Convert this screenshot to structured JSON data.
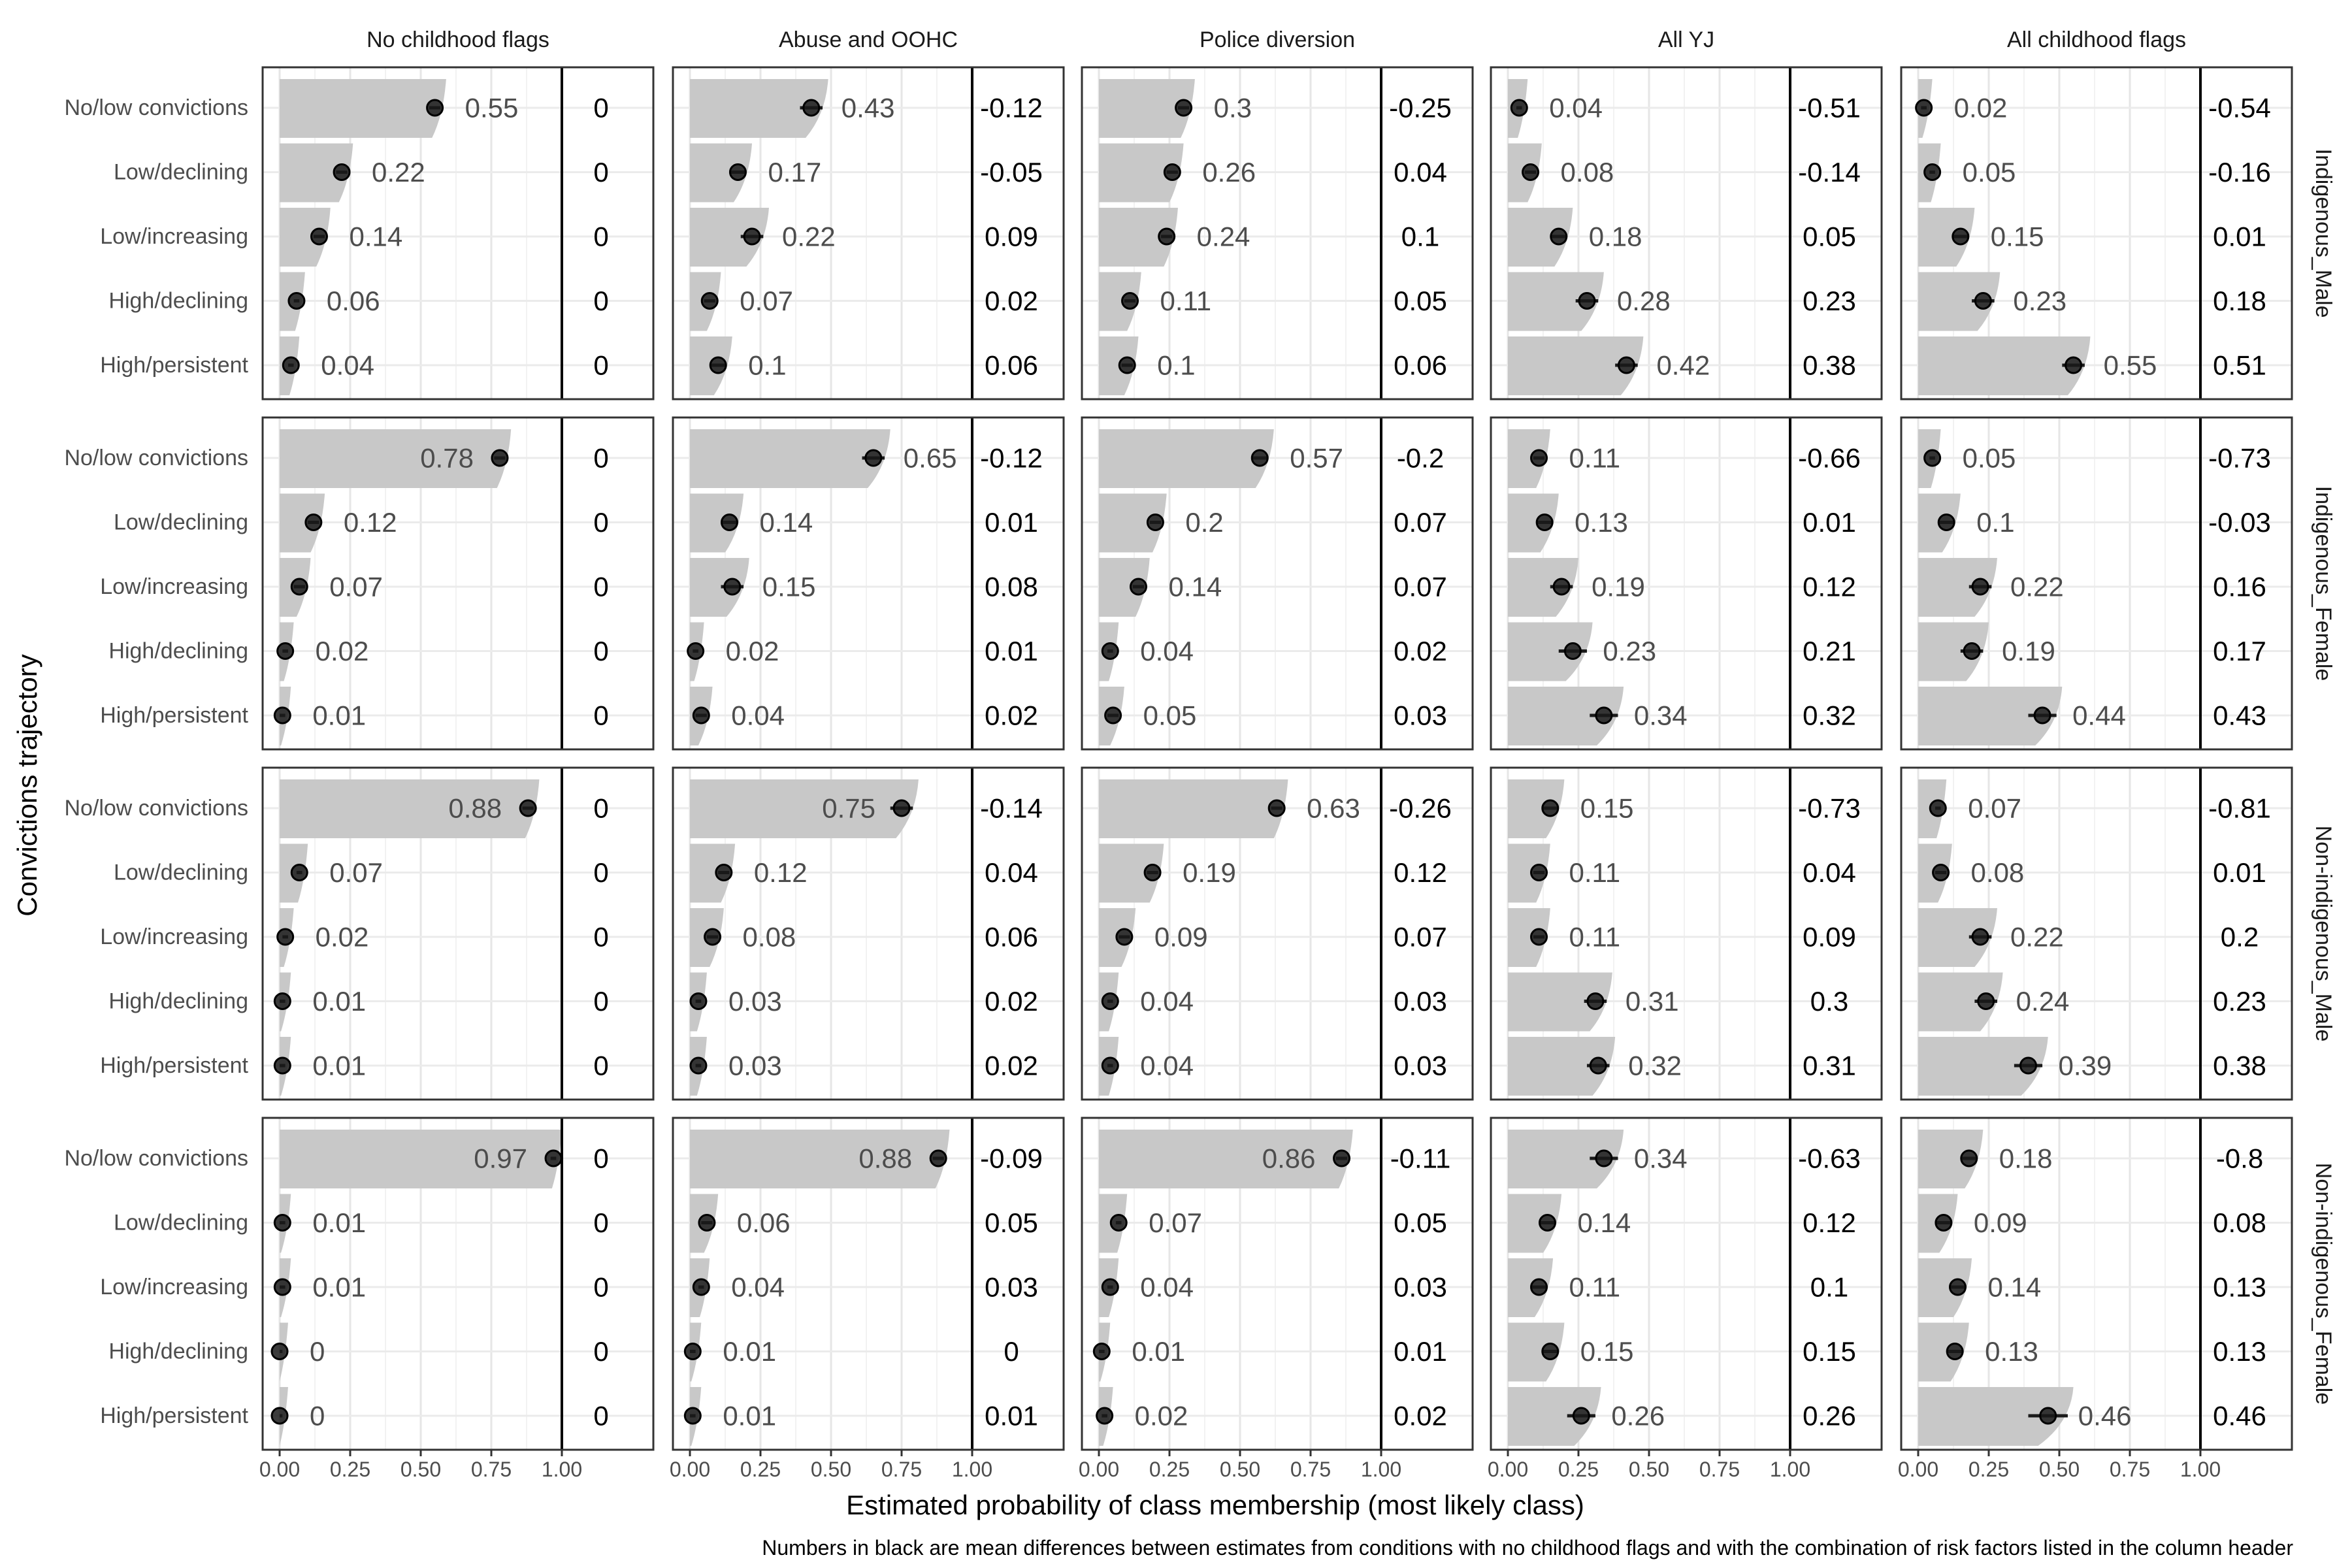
{
  "chart_data": {
    "type": "bar",
    "xlabel": "Estimated probability of class membership (most likely class)",
    "ylabel": "Convictions trajectory",
    "caption": "Numbers in black are mean differences between estimates from conditions with no childhood flags and with the combination of risk factors listed in the column header",
    "xlim": [
      0,
      1
    ],
    "xticks": [
      "0.00",
      "0.25",
      "0.50",
      "0.75",
      "1.00"
    ],
    "grid": true,
    "columns": [
      "No childhood flags",
      "Abuse and OOHC",
      "Police diversion",
      "All YJ",
      "All childhood flags"
    ],
    "rows": [
      "Indigenous_Male",
      "Indigenous_Female",
      "Non-indigenous_Male",
      "Non-indigenous_Female"
    ],
    "categories": [
      "No/low convictions",
      "Low/declining",
      "Low/increasing",
      "High/declining",
      "High/persistent"
    ],
    "values": [
      [
        [
          0.55,
          0.22,
          0.14,
          0.06,
          0.04
        ],
        [
          0.43,
          0.17,
          0.22,
          0.07,
          0.1
        ],
        [
          0.3,
          0.26,
          0.24,
          0.11,
          0.1
        ],
        [
          0.04,
          0.08,
          0.18,
          0.28,
          0.42
        ],
        [
          0.02,
          0.05,
          0.15,
          0.23,
          0.55
        ]
      ],
      [
        [
          0.78,
          0.12,
          0.07,
          0.02,
          0.01
        ],
        [
          0.65,
          0.14,
          0.15,
          0.02,
          0.04
        ],
        [
          0.57,
          0.2,
          0.14,
          0.04,
          0.05
        ],
        [
          0.11,
          0.13,
          0.19,
          0.23,
          0.34
        ],
        [
          0.05,
          0.1,
          0.22,
          0.19,
          0.44
        ]
      ],
      [
        [
          0.88,
          0.07,
          0.02,
          0.01,
          0.01
        ],
        [
          0.75,
          0.12,
          0.08,
          0.03,
          0.03
        ],
        [
          0.63,
          0.19,
          0.09,
          0.04,
          0.04
        ],
        [
          0.15,
          0.11,
          0.11,
          0.31,
          0.32
        ],
        [
          0.07,
          0.08,
          0.22,
          0.24,
          0.39
        ]
      ],
      [
        [
          0.97,
          0.01,
          0.01,
          0,
          0
        ],
        [
          0.88,
          0.06,
          0.04,
          0.01,
          0.01
        ],
        [
          0.86,
          0.07,
          0.04,
          0.01,
          0.02
        ],
        [
          0.34,
          0.14,
          0.11,
          0.15,
          0.26
        ],
        [
          0.18,
          0.09,
          0.14,
          0.13,
          0.46
        ]
      ]
    ],
    "differences": [
      [
        [
          0,
          0,
          0,
          0,
          0
        ],
        [
          -0.12,
          -0.05,
          0.09,
          0.02,
          0.06
        ],
        [
          -0.25,
          0.04,
          0.1,
          0.05,
          0.06
        ],
        [
          -0.51,
          -0.14,
          0.05,
          0.23,
          0.38
        ],
        [
          -0.54,
          -0.16,
          0.01,
          0.18,
          0.51
        ]
      ],
      [
        [
          0,
          0,
          0,
          0,
          0
        ],
        [
          -0.12,
          0.01,
          0.08,
          0.01,
          0.02
        ],
        [
          -0.2,
          0.07,
          0.07,
          0.02,
          0.03
        ],
        [
          -0.66,
          0.01,
          0.12,
          0.21,
          0.32
        ],
        [
          -0.73,
          -0.03,
          0.16,
          0.17,
          0.43
        ]
      ],
      [
        [
          0,
          0,
          0,
          0,
          0
        ],
        [
          -0.14,
          0.04,
          0.06,
          0.02,
          0.02
        ],
        [
          -0.26,
          0.12,
          0.07,
          0.03,
          0.03
        ],
        [
          -0.73,
          0.04,
          0.09,
          0.3,
          0.31
        ],
        [
          -0.81,
          0.01,
          0.2,
          0.23,
          0.38
        ]
      ],
      [
        [
          0,
          0,
          0,
          0,
          0
        ],
        [
          -0.09,
          0.05,
          0.03,
          0,
          0.01
        ],
        [
          -0.11,
          0.05,
          0.03,
          0.01,
          0.02
        ],
        [
          -0.63,
          0.12,
          0.1,
          0.15,
          0.26
        ],
        [
          -0.8,
          0.08,
          0.13,
          0.13,
          0.46
        ]
      ]
    ],
    "ci_halfwidth": [
      [
        [
          0.02,
          0.02,
          0.02,
          0.01,
          0.01
        ],
        [
          0.04,
          0.03,
          0.04,
          0.02,
          0.03
        ],
        [
          0.02,
          0.02,
          0.02,
          0.02,
          0.02
        ],
        [
          0.01,
          0.02,
          0.03,
          0.04,
          0.04
        ],
        [
          0.01,
          0.01,
          0.03,
          0.04,
          0.04
        ]
      ],
      [
        [
          0.02,
          0.02,
          0.02,
          0.01,
          0.01
        ],
        [
          0.04,
          0.03,
          0.04,
          0.01,
          0.02
        ],
        [
          0.03,
          0.02,
          0.02,
          0.01,
          0.02
        ],
        [
          0.02,
          0.03,
          0.04,
          0.05,
          0.05
        ],
        [
          0.01,
          0.03,
          0.04,
          0.04,
          0.05
        ]
      ],
      [
        [
          0.02,
          0.01,
          0.01,
          0.01,
          0.01
        ],
        [
          0.04,
          0.02,
          0.02,
          0.01,
          0.01
        ],
        [
          0.02,
          0.02,
          0.02,
          0.01,
          0.01
        ],
        [
          0.03,
          0.02,
          0.02,
          0.04,
          0.04
        ],
        [
          0.01,
          0.02,
          0.04,
          0.04,
          0.05
        ]
      ],
      [
        [
          0.01,
          0.01,
          0.01,
          0.01,
          0.01
        ],
        [
          0.02,
          0.02,
          0.01,
          0.01,
          0.01
        ],
        [
          0.02,
          0.01,
          0.01,
          0.01,
          0.01
        ],
        [
          0.05,
          0.03,
          0.03,
          0.03,
          0.05
        ],
        [
          0.03,
          0.03,
          0.03,
          0.03,
          0.07
        ]
      ]
    ]
  }
}
